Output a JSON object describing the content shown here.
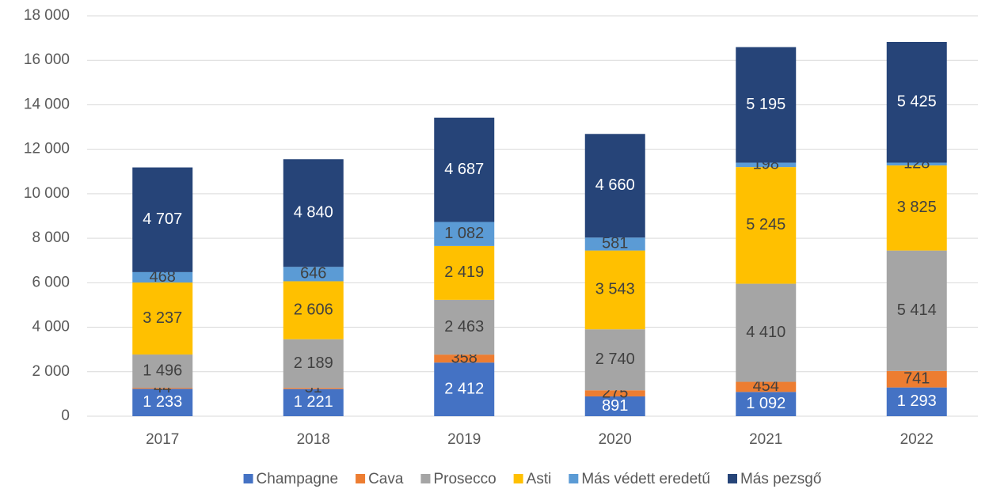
{
  "chart_data": {
    "type": "stacked_bar",
    "categories": [
      "2017",
      "2018",
      "2019",
      "2020",
      "2021",
      "2022"
    ],
    "series": [
      {
        "name": "Champagne",
        "color": "#4472c4",
        "values": [
          1233,
          1221,
          2412,
          891,
          1092,
          1293
        ],
        "value_labels": [
          "1 233",
          "1 221",
          "2 412",
          "891",
          "1 092",
          "1 293"
        ]
      },
      {
        "name": "Cava",
        "color": "#ed7d31",
        "values": [
          44,
          51,
          358,
          275,
          454,
          741
        ],
        "value_labels": [
          "44",
          "51",
          "358",
          "275",
          "454",
          "741"
        ]
      },
      {
        "name": "Prosecco",
        "color": "#a5a5a5",
        "values": [
          1496,
          2189,
          2463,
          2740,
          4410,
          5414
        ],
        "value_labels": [
          "1 496",
          "2 189",
          "2 463",
          "2 740",
          "4 410",
          "5 414"
        ]
      },
      {
        "name": "Asti",
        "color": "#ffc000",
        "values": [
          3237,
          2606,
          2419,
          3543,
          5245,
          3825
        ],
        "value_labels": [
          "3 237",
          "2 606",
          "2 419",
          "3 543",
          "5 245",
          "3 825"
        ]
      },
      {
        "name": "Más védett eredetű",
        "color": "#5b9bd5",
        "values": [
          468,
          646,
          1082,
          581,
          198,
          128
        ],
        "value_labels": [
          "468",
          "646",
          "1 082",
          "581",
          "198",
          "128"
        ]
      },
      {
        "name": "Más pezsgő",
        "color": "#264478",
        "values": [
          4707,
          4840,
          4687,
          4660,
          5195,
          5425
        ],
        "value_labels": [
          "4 707",
          "4 840",
          "4 687",
          "4 660",
          "5 195",
          "5 425"
        ]
      }
    ],
    "ylim": [
      0,
      18000
    ],
    "yticks": [
      0,
      {
        "value": 2000,
        "label": "2 000"
      },
      {
        "value": 4000,
        "label": "4 000"
      },
      {
        "value": 6000,
        "label": "6 000"
      },
      {
        "value": 8000,
        "label": "8 000"
      },
      {
        "value": 10000,
        "label": "10 000"
      },
      {
        "value": 12000,
        "label": "12 000"
      },
      {
        "value": 14000,
        "label": "14 000"
      },
      {
        "value": 16000,
        "label": "16 000"
      },
      {
        "value": 18000,
        "label": "18 000"
      }
    ],
    "grid": true,
    "legend": "bottom"
  }
}
